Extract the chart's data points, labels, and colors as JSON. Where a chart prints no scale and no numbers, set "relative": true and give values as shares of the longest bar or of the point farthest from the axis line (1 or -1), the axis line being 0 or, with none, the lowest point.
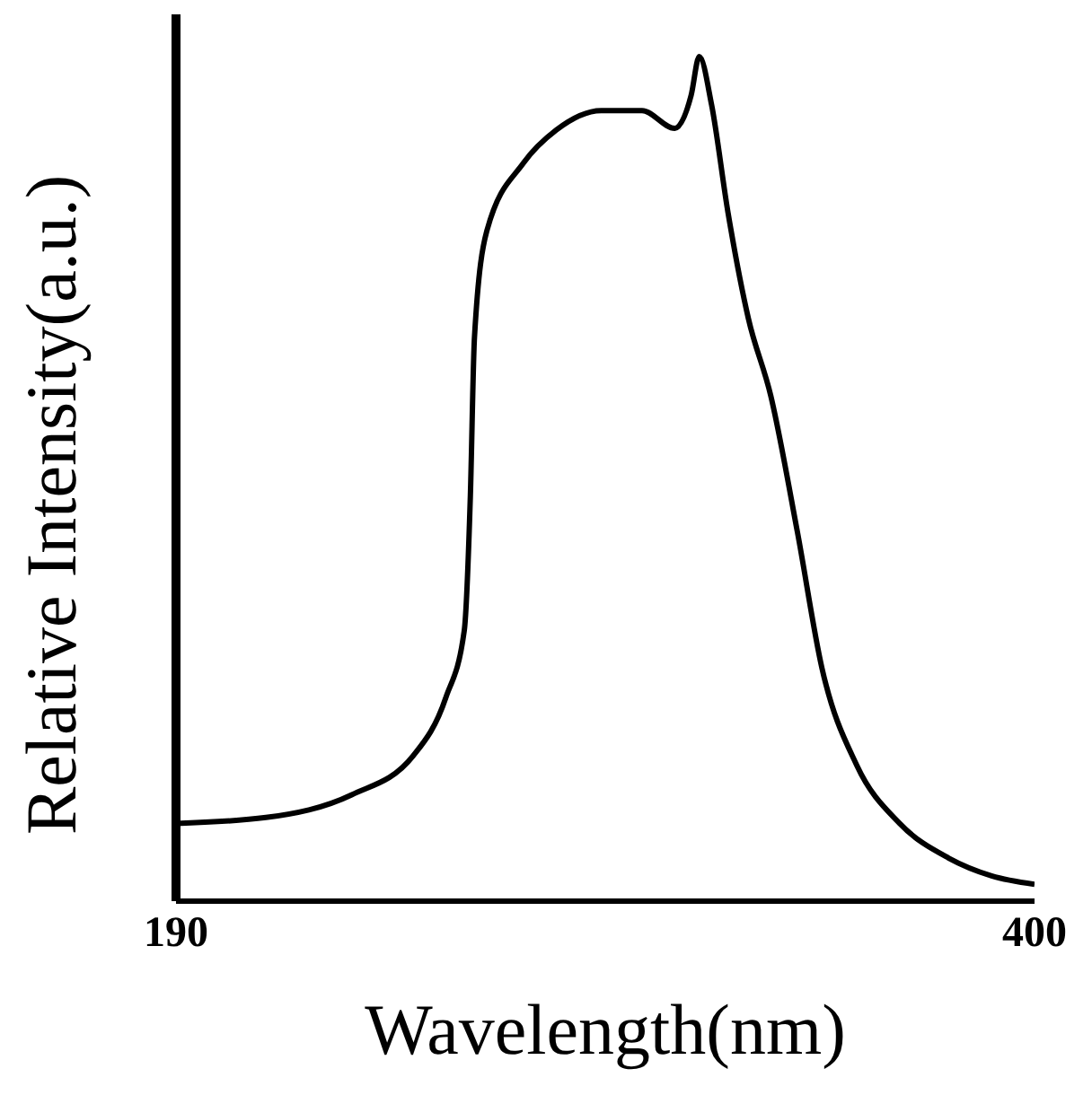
{
  "chart_data": {
    "type": "line",
    "xlabel": "Wavelength(nm)",
    "ylabel": "Relative Intensity(a.u.)",
    "relative": true,
    "xlim": [
      190,
      400
    ],
    "xticks": [
      190,
      400
    ],
    "color": "#000000",
    "marker": "none",
    "x": [
      190,
      212,
      233,
      248,
      256,
      260.5,
      262,
      263,
      266,
      275,
      283,
      294,
      304,
      312,
      316,
      318,
      321,
      325,
      330,
      335.5,
      342,
      348,
      356.5,
      367,
      379,
      389.5,
      400
    ],
    "values": [
      0.092,
      0.099,
      0.126,
      0.172,
      0.241,
      0.32,
      0.48,
      0.667,
      0.793,
      0.874,
      0.913,
      0.936,
      0.936,
      0.915,
      0.954,
      1.0,
      0.943,
      0.816,
      0.69,
      0.598,
      0.437,
      0.276,
      0.161,
      0.092,
      0.051,
      0.03,
      0.02
    ]
  }
}
